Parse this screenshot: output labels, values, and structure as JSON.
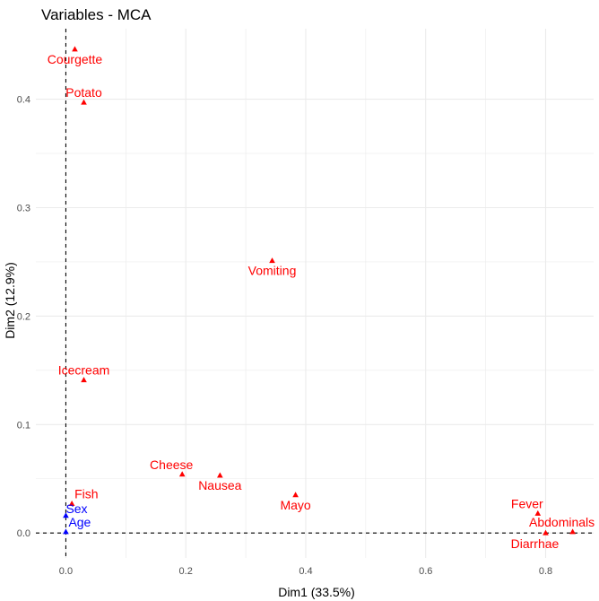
{
  "chart_data": {
    "type": "scatter",
    "title": "Variables - MCA",
    "xlabel": "Dim1 (33.5%)",
    "ylabel": "Dim2 (12.9%)",
    "xlim": [
      -0.05,
      0.88
    ],
    "ylim": [
      -0.023,
      0.465
    ],
    "x_ticks": [
      0.0,
      0.2,
      0.4,
      0.6,
      0.8
    ],
    "x_tick_labels": [
      "0.0",
      "0.2",
      "0.4",
      "0.6",
      "0.8"
    ],
    "y_ticks": [
      0.0,
      0.1,
      0.2,
      0.3,
      0.4
    ],
    "y_tick_labels": [
      "0.0",
      "0.1",
      "0.2",
      "0.3",
      "0.4"
    ],
    "grid": true,
    "reference_lines": {
      "x": 0,
      "y": 0,
      "style": "dashed"
    },
    "colors": {
      "active": "#ff0000",
      "supplementary": "#0000ff",
      "grid": "#ebebeb"
    },
    "points": [
      {
        "label": "Courgette",
        "x": 0.015,
        "y": 0.446,
        "group": "active",
        "label_pos": "below"
      },
      {
        "label": "Potato",
        "x": 0.03,
        "y": 0.397,
        "group": "active",
        "label_pos": "above"
      },
      {
        "label": "Vomiting",
        "x": 0.344,
        "y": 0.251,
        "group": "active",
        "label_pos": "below"
      },
      {
        "label": "Icecream",
        "x": 0.03,
        "y": 0.141,
        "group": "active",
        "label_pos": "above"
      },
      {
        "label": "Cheese",
        "x": 0.194,
        "y": 0.054,
        "group": "active",
        "label_pos": "above-left"
      },
      {
        "label": "Nausea",
        "x": 0.257,
        "y": 0.053,
        "group": "active",
        "label_pos": "below"
      },
      {
        "label": "Mayo",
        "x": 0.383,
        "y": 0.035,
        "group": "active",
        "label_pos": "below"
      },
      {
        "label": "Fish",
        "x": 0.01,
        "y": 0.027,
        "group": "active",
        "label_pos": "above-right"
      },
      {
        "label": "Fever",
        "x": 0.787,
        "y": 0.018,
        "group": "active",
        "label_pos": "above-left"
      },
      {
        "label": "Abdominals",
        "x": 0.845,
        "y": 0.001,
        "group": "active",
        "label_pos": "above-left"
      },
      {
        "label": "Diarrhae",
        "x": 0.8,
        "y": 0.0,
        "group": "active",
        "label_pos": "below-left"
      },
      {
        "label": "Sex",
        "x": 0.0,
        "y": 0.016,
        "group": "supplementary",
        "label_pos": "right"
      },
      {
        "label": "Age",
        "x": 0.0,
        "y": 0.001,
        "group": "supplementary",
        "label_pos": "above-right"
      }
    ]
  }
}
